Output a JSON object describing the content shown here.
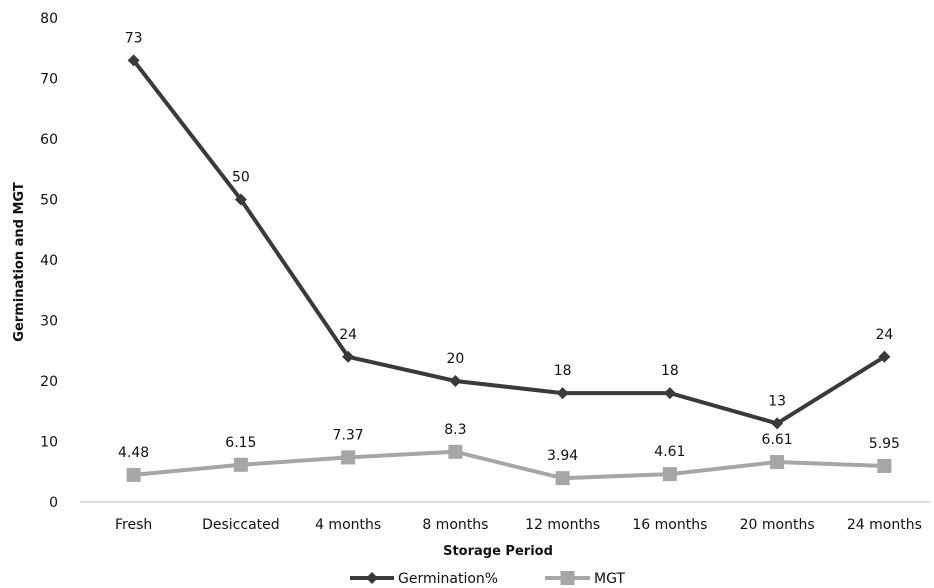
{
  "chart_data": {
    "type": "line",
    "categories": [
      "Fresh",
      "Desiccated",
      "4 months",
      "8 months",
      "12 months",
      "16 months",
      "20 months",
      "24 months"
    ],
    "series": [
      {
        "name": "Germination%",
        "values": [
          73,
          50,
          24,
          20,
          18,
          18,
          13,
          24
        ],
        "labels": [
          "73",
          "50",
          "24",
          "20",
          "18",
          "18",
          "13",
          "24"
        ],
        "color": "#3a3a3a",
        "marker": "diamond"
      },
      {
        "name": "MGT",
        "values": [
          4.48,
          6.15,
          7.37,
          8.3,
          3.94,
          4.61,
          6.61,
          5.95
        ],
        "labels": [
          "4.48",
          "6.15",
          "7.37",
          "8.3",
          "3.94",
          "4.61",
          "6.61",
          "5.95"
        ],
        "color": "#a6a6a6",
        "marker": "square"
      }
    ],
    "xlabel": "Storage Period",
    "ylabel": "Germination and MGT",
    "ylim": [
      0,
      80
    ],
    "yticks": [
      "0",
      "10",
      "20",
      "30",
      "40",
      "50",
      "60",
      "70",
      "80"
    ],
    "grid": false,
    "legend_position": "bottom"
  }
}
